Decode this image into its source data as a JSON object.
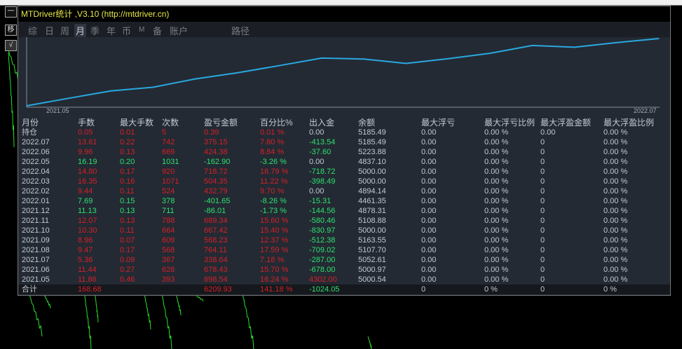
{
  "window": {
    "title": "MTDriver统计 ,V3.10 (http://mtdriver.cn)"
  },
  "side_buttons": [
    "一",
    "移",
    "√"
  ],
  "tabs": [
    {
      "label": "综"
    },
    {
      "label": "日"
    },
    {
      "label": "周"
    },
    {
      "label": "月",
      "active": true
    },
    {
      "label": "季"
    },
    {
      "label": "年"
    },
    {
      "label": "币"
    },
    {
      "label": "M"
    },
    {
      "label": "备"
    },
    {
      "label": "账户"
    },
    {
      "label": "路径"
    }
  ],
  "colors": {
    "profit": "#d42028",
    "loss": "#2ee070",
    "neutral": "#c4c9d1",
    "line": "#29a8e0"
  },
  "chart_data": {
    "type": "line",
    "x_start_label": "2021.05",
    "x_end_label": "2022.07",
    "series": [
      {
        "values": [
          0,
          698.54,
          1376.97,
          1715.61,
          2479.72,
          3047.95,
          3715.37,
          4404.71,
          4318.7,
          3917.05,
          4349.84,
          4854.19,
          5572.91,
          5410.01,
          5834.39,
          6209.54
        ]
      }
    ]
  },
  "table": {
    "headers": [
      "月份",
      "手数",
      "最大手数",
      "次数",
      "盈亏金额",
      "百分比%",
      "出入金",
      "余额",
      "最大浮亏",
      "最大浮亏比例",
      "最大浮盈金额",
      "最大浮盈比例"
    ],
    "rows": [
      {
        "c": [
          "持仓",
          "0.05",
          "0.01",
          "5",
          "0.39",
          "0.01 %",
          "0.00",
          "5185.49",
          "0.00",
          "0.00 %",
          "0.00",
          "0.00 %"
        ],
        "s": "red",
        "f": "gray"
      },
      {
        "c": [
          "2022.07",
          "13.61",
          "0.22",
          "742",
          "375.15",
          "7.80 %",
          "-413.54",
          "5185.49",
          "0.00",
          "0.00 %",
          "0",
          "0.00 %"
        ],
        "s": "red",
        "f": "green"
      },
      {
        "c": [
          "2022.06",
          "9.96",
          "0.13",
          "669",
          "424.38",
          "8.84 %",
          "-37.60",
          "5223.88",
          "0.00",
          "0.00 %",
          "0",
          "0.00 %"
        ],
        "s": "red",
        "f": "green"
      },
      {
        "c": [
          "2022.05",
          "16.19",
          "0.20",
          "1031",
          "-162.90",
          "-3.26 %",
          "0.00",
          "4837.10",
          "0.00",
          "0.00 %",
          "0",
          "0.00 %"
        ],
        "s": "green",
        "f": "gray"
      },
      {
        "c": [
          "2022.04",
          "14.80",
          "0.17",
          "920",
          "718.72",
          "16.79 %",
          "-718.72",
          "5000.00",
          "0.00",
          "0.00 %",
          "0",
          "0.00 %"
        ],
        "s": "red",
        "f": "green"
      },
      {
        "c": [
          "2022.03",
          "16.35",
          "0.16",
          "1071",
          "504.35",
          "11.22 %",
          "-398.49",
          "5000.00",
          "0.00",
          "0.00 %",
          "0",
          "0.00 %"
        ],
        "s": "red",
        "f": "green"
      },
      {
        "c": [
          "2022.02",
          "9.44",
          "0.11",
          "524",
          "432.79",
          "9.70 %",
          "0.00",
          "4894.14",
          "0.00",
          "0.00 %",
          "0",
          "0.00 %"
        ],
        "s": "red",
        "f": "gray"
      },
      {
        "c": [
          "2022.01",
          "7.69",
          "0.15",
          "378",
          "-401.65",
          "-8.26 %",
          "-15.31",
          "4461.35",
          "0.00",
          "0.00 %",
          "0",
          "0.00 %"
        ],
        "s": "green",
        "f": "green"
      },
      {
        "c": [
          "2021.12",
          "11.13",
          "0.13",
          "711",
          "-86.01",
          "-1.73 %",
          "-144.56",
          "4878.31",
          "0.00",
          "0.00 %",
          "0",
          "0.00 %"
        ],
        "s": "green",
        "f": "green"
      },
      {
        "c": [
          "2021.11",
          "12.07",
          "0.13",
          "788",
          "689.34",
          "15.60 %",
          "-580.46",
          "5108.88",
          "0.00",
          "0.00 %",
          "0",
          "0.00 %"
        ],
        "s": "red",
        "f": "green"
      },
      {
        "c": [
          "2021.10",
          "10.30",
          "0.11",
          "664",
          "667.42",
          "15.40 %",
          "-830.97",
          "5000.00",
          "0.00",
          "0.00 %",
          "0",
          "0.00 %"
        ],
        "s": "red",
        "f": "green"
      },
      {
        "c": [
          "2021.09",
          "8.96",
          "0.07",
          "609",
          "568.23",
          "12.37 %",
          "-512.38",
          "5163.55",
          "0.00",
          "0.00 %",
          "0",
          "0.00 %"
        ],
        "s": "red",
        "f": "green"
      },
      {
        "c": [
          "2021.08",
          "9.47",
          "0.17",
          "568",
          "764.11",
          "17.59 %",
          "-709.02",
          "5107.70",
          "0.00",
          "0.00 %",
          "0",
          "0.00 %"
        ],
        "s": "red",
        "f": "green"
      },
      {
        "c": [
          "2021.07",
          "5.36",
          "0.09",
          "367",
          "338.64",
          "7.18 %",
          "-287.00",
          "5052.61",
          "0.00",
          "0.00 %",
          "0",
          "0.00 %"
        ],
        "s": "red",
        "f": "green"
      },
      {
        "c": [
          "2021.06",
          "11.44",
          "0.27",
          "626",
          "678.43",
          "15.70 %",
          "-678.00",
          "5000.97",
          "0.00",
          "0.00 %",
          "0",
          "0.00 %"
        ],
        "s": "red",
        "f": "green"
      },
      {
        "c": [
          "2021.05",
          "11.86",
          "0.46",
          "393",
          "698.54",
          "16.24 %",
          "4302.00",
          "5000.54",
          "0.00",
          "0.00 %",
          "0",
          "0.00 %"
        ],
        "s": "red",
        "f": "red"
      }
    ],
    "total": {
      "c": [
        "合计",
        "168.68",
        "",
        "",
        "6209.93",
        "141.18 %",
        "-1024.05",
        "",
        "0",
        "0 %",
        "0",
        "0 %"
      ],
      "s": "red",
      "f": "green"
    }
  }
}
